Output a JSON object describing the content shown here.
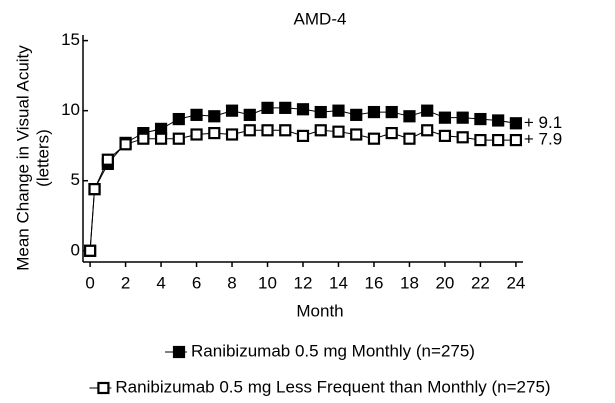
{
  "chart_data": {
    "type": "line",
    "title": "AMD-4",
    "x_label": "Month",
    "y_label": [
      "Mean Change in Visual Acuity",
      "(letters)"
    ],
    "x": [
      0,
      0.25,
      1,
      2,
      3,
      4,
      5,
      6,
      7,
      8,
      9,
      10,
      11,
      12,
      13,
      14,
      15,
      16,
      17,
      18,
      19,
      20,
      21,
      22,
      23,
      24
    ],
    "series": [
      {
        "name": "Ranibizumab 0.5 mg Monthly (n=275)",
        "color": "#000000",
        "marker": "filled-square",
        "values": [
          0,
          4.4,
          6.2,
          7.7,
          8.4,
          8.7,
          9.4,
          9.7,
          9.6,
          10.0,
          9.7,
          10.2,
          10.2,
          10.1,
          9.9,
          10.0,
          9.7,
          9.9,
          9.9,
          9.6,
          10.0,
          9.5,
          9.5,
          9.4,
          9.3,
          9.1
        ]
      },
      {
        "name": "Ranibizumab 0.5 mg Less Frequent than Monthly (n=275)",
        "color": "#000000",
        "marker": "open-square",
        "values": [
          0,
          4.4,
          6.5,
          7.6,
          8.0,
          8.0,
          8.0,
          8.3,
          8.4,
          8.3,
          8.6,
          8.6,
          8.6,
          8.2,
          8.6,
          8.5,
          8.3,
          8.0,
          8.4,
          8.0,
          8.6,
          8.2,
          8.1,
          7.9,
          7.9,
          7.9
        ]
      }
    ],
    "annotations": [
      "+ 9.1",
      "+ 7.9"
    ],
    "xlim": [
      -0.4,
      24.4
    ],
    "xticks": [
      0,
      2,
      4,
      6,
      8,
      10,
      12,
      14,
      16,
      18,
      20,
      22,
      24
    ],
    "ylim": [
      -0.8,
      15.4
    ],
    "yticks": [
      0,
      5,
      10,
      15
    ],
    "grid": false
  }
}
